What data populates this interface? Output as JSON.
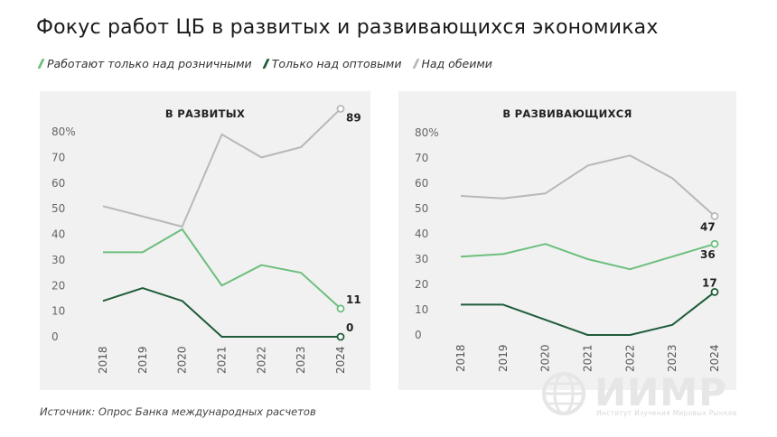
{
  "title": "Фокус работ ЦБ в развитых и развивающихся экономиках",
  "legend": [
    {
      "label": "Работают только над розничными",
      "color": "#6dbf7e"
    },
    {
      "label": "Только над оптовыми",
      "color": "#1f5c3a"
    },
    {
      "label": "Над обеими",
      "color": "#b8b8b8"
    }
  ],
  "source": "Источник: Опрос Банка международных расчетов",
  "logo": {
    "text": "ИИМР",
    "subtitle": "Институт Изучения Мировых Рынков"
  },
  "chart_data": [
    {
      "type": "line",
      "title": "В РАЗВИТЫХ",
      "x": [
        "2018",
        "2019",
        "2020",
        "2021",
        "2022",
        "2023",
        "2024"
      ],
      "ylim": [
        0,
        80
      ],
      "yticks": [
        "80%",
        "70",
        "60",
        "50",
        "40",
        "30",
        "20",
        "10",
        "0"
      ],
      "series": [
        {
          "name": "Над обеими",
          "color": "#b8b8b8",
          "values": [
            51,
            47,
            43,
            79,
            70,
            74,
            89
          ],
          "end_label": "89"
        },
        {
          "name": "Работают только над розничными",
          "color": "#6dbf7e",
          "values": [
            33,
            33,
            42,
            20,
            28,
            25,
            11
          ],
          "end_label": "11"
        },
        {
          "name": "Только над оптовыми",
          "color": "#1f5c3a",
          "values": [
            14,
            19,
            14,
            0,
            0,
            0,
            0
          ],
          "end_label": "0"
        }
      ]
    },
    {
      "type": "line",
      "title": "В РАЗВИВАЮЩИХСЯ",
      "x": [
        "2018",
        "2019",
        "2020",
        "2021",
        "2022",
        "2023",
        "2024"
      ],
      "ylim": [
        0,
        80
      ],
      "yticks": [
        "80%",
        "70",
        "60",
        "50",
        "40",
        "30",
        "20",
        "10",
        "0"
      ],
      "series": [
        {
          "name": "Над обеими",
          "color": "#b8b8b8",
          "values": [
            55,
            54,
            56,
            67,
            71,
            62,
            47
          ],
          "end_label": "47"
        },
        {
          "name": "Работают только над розничными",
          "color": "#6dbf7e",
          "values": [
            31,
            32,
            36,
            30,
            26,
            31,
            36
          ],
          "end_label": "36"
        },
        {
          "name": "Только над оптовыми",
          "color": "#1f5c3a",
          "values": [
            12,
            12,
            6,
            0,
            0,
            4,
            17
          ],
          "end_label": "17"
        }
      ]
    }
  ]
}
